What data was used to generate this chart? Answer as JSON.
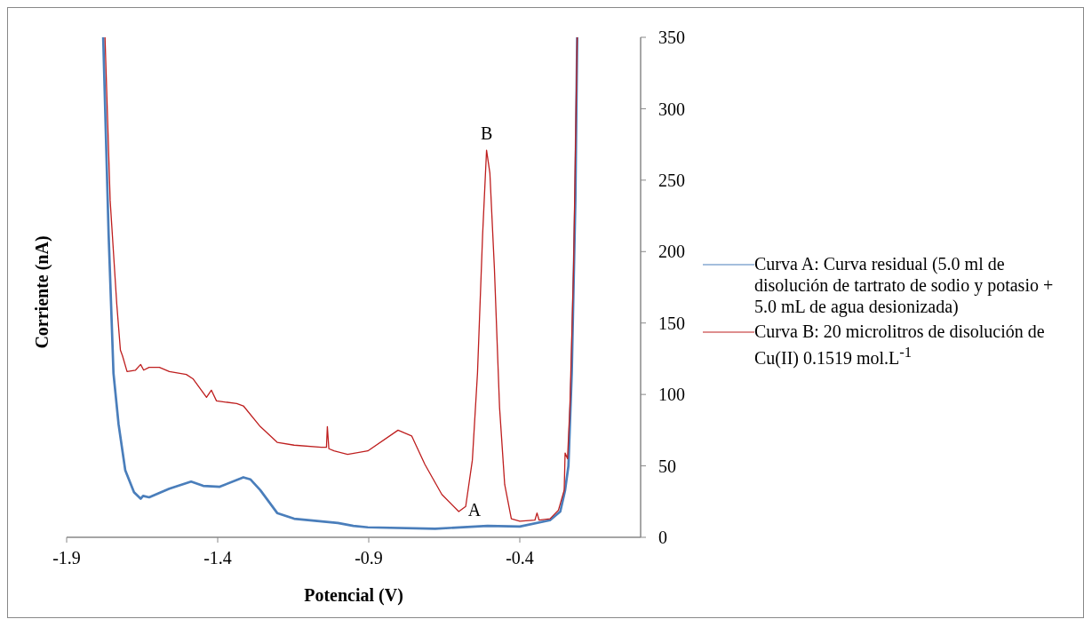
{
  "chart_data": {
    "type": "line",
    "xlabel": "Potencial (V)",
    "ylabel": "Corriente (nA)",
    "xlim": [
      -1.9,
      0
    ],
    "xticks": [
      -1.9,
      -1.4,
      -0.9,
      -0.4
    ],
    "ylim": [
      0,
      350
    ],
    "yticks": [
      0,
      50,
      100,
      150,
      200,
      250,
      300,
      350
    ],
    "grid": false,
    "legend": "right",
    "marker": "none",
    "line_style": "solid",
    "annotations": [
      {
        "text": "B",
        "x": -0.51,
        "y": 271
      },
      {
        "text": "A",
        "x": -0.55,
        "y": 7.5
      }
    ],
    "series": [
      {
        "name": "Curva A: Curva residual (5.0 ml de disolución de tartrato de sodio y potasio + 5.0 mL de agua desionizada)",
        "color": "#4a7ebb",
        "x": [
          -1.779,
          -1.761,
          -1.745,
          -1.728,
          -1.706,
          -1.677,
          -1.655,
          -1.647,
          -1.627,
          -1.56,
          -1.488,
          -1.448,
          -1.393,
          -1.315,
          -1.292,
          -1.259,
          -1.203,
          -1.147,
          -1.002,
          -0.951,
          -0.903,
          -0.68,
          -0.507,
          -0.4,
          -0.3,
          -0.266,
          -0.25,
          -0.239,
          -0.228,
          -0.216,
          -0.21
        ],
        "values": [
          350,
          212,
          115,
          79,
          47,
          31.5,
          27,
          29,
          28,
          34,
          39,
          36,
          35.4,
          42,
          40.6,
          33,
          17,
          13,
          10,
          8,
          7,
          6,
          8,
          7.5,
          12,
          18,
          33,
          50,
          115,
          236,
          350
        ]
      },
      {
        "name": "Curva B: 20 microlitros de disolución de Cu(II) 0.1519 mol.L$^{-1}$",
        "color": "#be1e1e",
        "x": [
          -1.773,
          -1.756,
          -1.734,
          -1.722,
          -1.715,
          -1.7,
          -1.672,
          -1.655,
          -1.645,
          -1.627,
          -1.593,
          -1.56,
          -1.504,
          -1.482,
          -1.437,
          -1.421,
          -1.404,
          -1.337,
          -1.315,
          -1.259,
          -1.203,
          -1.147,
          -1.057,
          -1.04,
          -1.037,
          -1.032,
          -1.015,
          -0.97,
          -0.903,
          -0.803,
          -0.758,
          -0.714,
          -0.658,
          -0.602,
          -0.579,
          -0.557,
          -0.54,
          -0.523,
          -0.51,
          -0.499,
          -0.484,
          -0.467,
          -0.45,
          -0.428,
          -0.4,
          -0.35,
          -0.343,
          -0.336,
          -0.3,
          -0.272,
          -0.253,
          -0.25,
          -0.242,
          -0.234,
          -0.222,
          -0.21
        ],
        "values": [
          350,
          236,
          163,
          131,
          127,
          116,
          117,
          121,
          117,
          119,
          119,
          116,
          114,
          111,
          98,
          103,
          95.5,
          93.6,
          92,
          77.5,
          66.5,
          64.5,
          63,
          63,
          77.5,
          62,
          60.5,
          58,
          60.5,
          75,
          71,
          51,
          30,
          18,
          21.6,
          54,
          115,
          212,
          271,
          255,
          188,
          91,
          37,
          13,
          11.3,
          12,
          17,
          12,
          13,
          19,
          33,
          59,
          55,
          92,
          188,
          350
        ]
      }
    ]
  }
}
